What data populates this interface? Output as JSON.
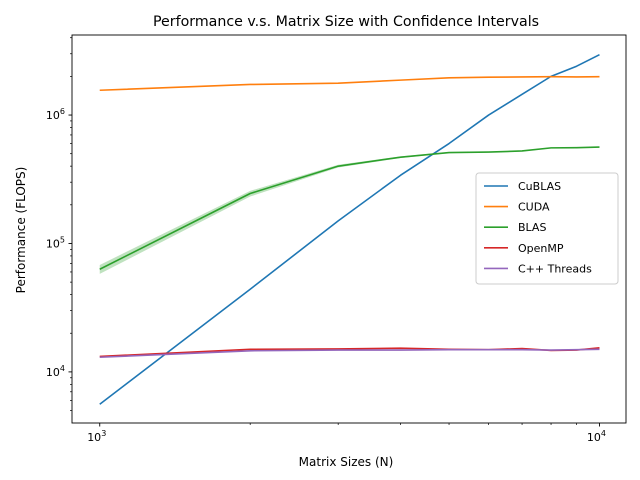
{
  "chart_data": {
    "type": "line",
    "title": "Performance v.s. Matrix Size with Confidence Intervals",
    "xlabel": "Matrix Sizes (N)",
    "ylabel": "Performance (FLOPS)",
    "xscale": "log",
    "yscale": "log",
    "xlim": [
      880,
      11300
    ],
    "ylim": [
      4000,
      4200000
    ],
    "x_ticks": [
      {
        "value": 1000,
        "base": "10",
        "exp": "3"
      },
      {
        "value": 10000,
        "base": "10",
        "exp": "4"
      }
    ],
    "y_ticks": [
      {
        "value": 10000,
        "base": "10",
        "exp": "4"
      },
      {
        "value": 100000,
        "base": "10",
        "exp": "5"
      },
      {
        "value": 1000000,
        "base": "10",
        "exp": "6"
      }
    ],
    "legend_position": "center-right",
    "series": [
      {
        "name": "CuBLAS",
        "color": "#1f77b4",
        "x": [
          1000,
          2000,
          3000,
          4000,
          5000,
          6000,
          7000,
          8000,
          9000,
          10000
        ],
        "y": [
          5600,
          44000,
          150000,
          340000,
          600000,
          1000000,
          1450000,
          2000000,
          2400000,
          2950000
        ],
        "ci": null
      },
      {
        "name": "CUDA",
        "color": "#ff7f0e",
        "x": [
          1000,
          2000,
          3000,
          4000,
          5000,
          6000,
          7000,
          8000,
          9000,
          10000
        ],
        "y": [
          1560000,
          1730000,
          1770000,
          1870000,
          1950000,
          1970000,
          1980000,
          1990000,
          1980000,
          1990000
        ],
        "ci": null
      },
      {
        "name": "BLAS",
        "color": "#2ca02c",
        "x": [
          1000,
          2000,
          3000,
          4000,
          5000,
          6000,
          7000,
          8000,
          9000,
          10000
        ],
        "y": [
          63000,
          245000,
          400000,
          470000,
          510000,
          515000,
          525000,
          555000,
          557000,
          563000
        ],
        "ci_low": [
          58000,
          232000,
          390000,
          463000,
          505000,
          512000,
          520000,
          550000,
          553000,
          558000
        ],
        "ci_high": [
          68000,
          257000,
          410000,
          477000,
          515000,
          518000,
          530000,
          560000,
          561000,
          568000
        ]
      },
      {
        "name": "OpenMP",
        "color": "#d62728",
        "x": [
          1000,
          2000,
          3000,
          4000,
          5000,
          6000,
          7000,
          8000,
          9000,
          10000
        ],
        "y": [
          13200,
          15000,
          15100,
          15300,
          15000,
          14900,
          15200,
          14700,
          14800,
          15400
        ],
        "ci": null
      },
      {
        "name": "C++ Threads",
        "color": "#9467bd",
        "x": [
          1000,
          2000,
          3000,
          4000,
          5000,
          6000,
          7000,
          8000,
          9000,
          10000
        ],
        "y": [
          13000,
          14600,
          14800,
          14800,
          14900,
          14900,
          14900,
          14800,
          14900,
          15000
        ],
        "ci": null
      }
    ]
  }
}
